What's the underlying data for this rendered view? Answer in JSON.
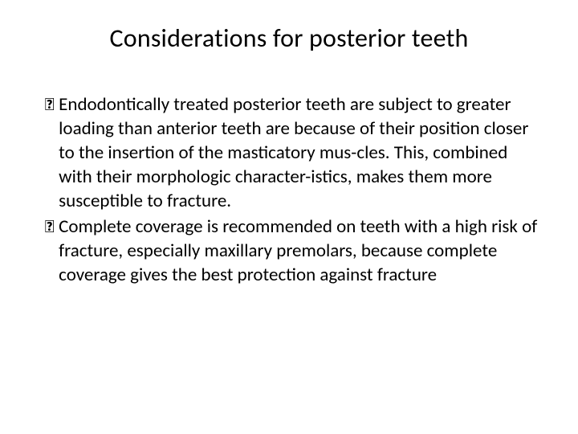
{
  "slide": {
    "title": "Considerations for posterior teeth",
    "bullets": [
      {
        "marker": "",
        "text": "Endodontically treated posterior teeth are subject to greater loading than anterior teeth are because of their position closer to the insertion of the masticatory mus-cles. This, combined with their morphologic character-istics, makes them more susceptible to fracture."
      },
      {
        "marker": "",
        "text": "Complete coverage is recommended on teeth with a high risk of fracture, especially maxillary premolars, because complete coverage gives the best protection against fracture"
      }
    ],
    "style": {
      "background_color": "#ffffff",
      "text_color": "#000000",
      "title_fontsize": 32,
      "body_fontsize": 23,
      "line_height": 30,
      "font_family": "Calibri"
    }
  }
}
